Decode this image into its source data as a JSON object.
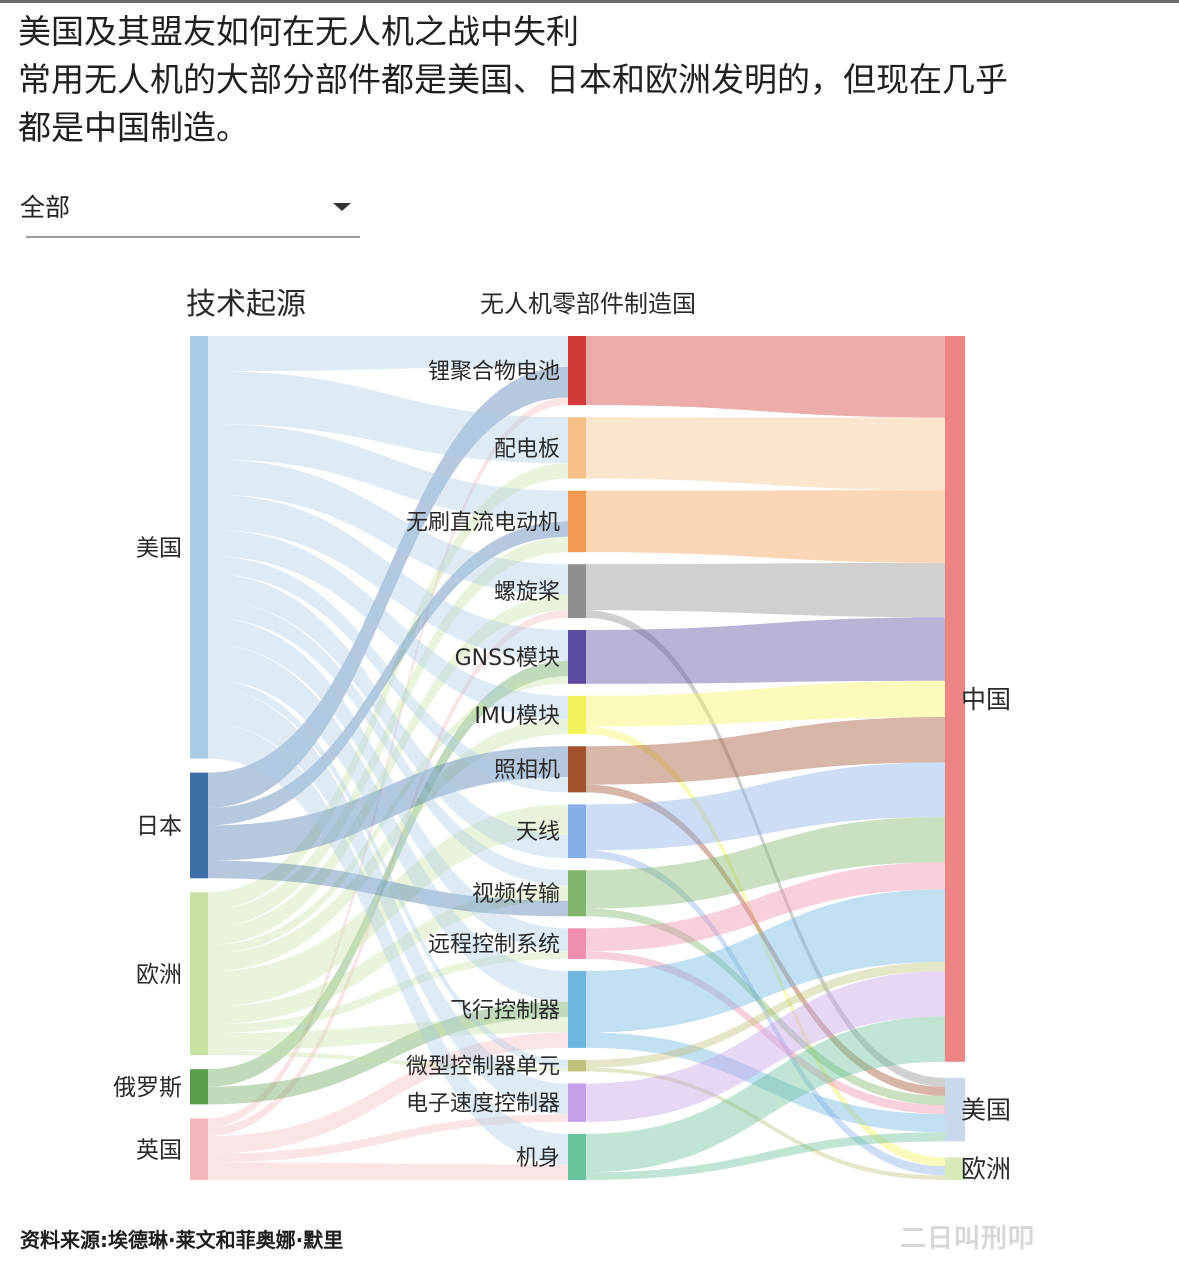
{
  "header": {
    "title": "美国及其盟友如何在无人机之战中失利",
    "subtitle_line1": "常用无人机的大部分部件都是美国、日本和欧洲发明的，但现在几乎",
    "subtitle_line2": "都是中国制造。"
  },
  "filter": {
    "selected": "全部"
  },
  "footer": {
    "source": "资料来源:埃德琳·莱文和菲奥娜·默里",
    "watermark": "二日叫刑叩"
  },
  "chart_data": {
    "type": "sankey",
    "column_titles": {
      "origin": "技术起源",
      "component": "无人机零部件制造国"
    },
    "columns": {
      "origin": [
        {
          "name": "美国",
          "color": "#a9cbe6"
        },
        {
          "name": "日本",
          "color": "#3c6fa6"
        },
        {
          "name": "欧洲",
          "color": "#c9e2a4"
        },
        {
          "name": "俄罗斯",
          "color": "#5a9e4b"
        },
        {
          "name": "英国",
          "color": "#f1b7bd"
        }
      ],
      "component": [
        {
          "name": "锂聚合物电池",
          "color": "#d13a35"
        },
        {
          "name": "配电板",
          "color": "#f5c188"
        },
        {
          "name": "无刷直流电动机",
          "color": "#f29a52"
        },
        {
          "name": "螺旋桨",
          "color": "#8f8f8f"
        },
        {
          "name": "GNSS模块",
          "color": "#5b4a9e"
        },
        {
          "name": "IMU模块",
          "color": "#f3f25a"
        },
        {
          "name": "照相机",
          "color": "#a0522d"
        },
        {
          "name": "天线",
          "color": "#86aee8"
        },
        {
          "name": "视频传输",
          "color": "#7fb56c"
        },
        {
          "name": "远程控制系统",
          "color": "#ee8fac"
        },
        {
          "name": "飞行控制器",
          "color": "#6cb6e0"
        },
        {
          "name": "微型控制器单元",
          "color": "#c2c27a"
        },
        {
          "name": "电子速度控制器",
          "color": "#c4a0e8"
        },
        {
          "name": "机身",
          "color": "#68c29b"
        }
      ],
      "manufacturer": [
        {
          "name": "中国",
          "color": "#ee8585"
        },
        {
          "name": "美国",
          "color": "#c9d8ea"
        },
        {
          "name": "欧洲",
          "color": "#d9eab8"
        }
      ]
    },
    "origin_to_component": [
      [
        "美国",
        "锂聚合物电池",
        2
      ],
      [
        "日本",
        "锂聚合物电池",
        2
      ],
      [
        "英国",
        "锂聚合物电池",
        0.5
      ],
      [
        "美国",
        "配电板",
        3
      ],
      [
        "欧洲",
        "配电板",
        1
      ],
      [
        "美国",
        "无刷直流电动机",
        2
      ],
      [
        "日本",
        "无刷直流电动机",
        1
      ],
      [
        "欧洲",
        "无刷直流电动机",
        1
      ],
      [
        "美国",
        "螺旋桨",
        2
      ],
      [
        "欧洲",
        "螺旋桨",
        1
      ],
      [
        "英国",
        "螺旋桨",
        0.5
      ],
      [
        "美国",
        "GNSS模块",
        2
      ],
      [
        "俄罗斯",
        "GNSS模块",
        1
      ],
      [
        "欧洲",
        "GNSS模块",
        0.5
      ],
      [
        "美国",
        "IMU模块",
        1.5
      ],
      [
        "欧洲",
        "IMU模块",
        1
      ],
      [
        "日本",
        "照相机",
        2
      ],
      [
        "美国",
        "照相机",
        1
      ],
      [
        "欧洲",
        "天线",
        2
      ],
      [
        "美国",
        "天线",
        1.5
      ],
      [
        "美国",
        "视频传输",
        1
      ],
      [
        "欧洲",
        "视频传输",
        1
      ],
      [
        "日本",
        "视频传输",
        1
      ],
      [
        "美国",
        "远程控制系统",
        1.5
      ],
      [
        "欧洲",
        "远程控制系统",
        0.5
      ],
      [
        "美国",
        "飞行控制器",
        2
      ],
      [
        "俄罗斯",
        "飞行控制器",
        1
      ],
      [
        "欧洲",
        "飞行控制器",
        1
      ],
      [
        "英国",
        "飞行控制器",
        1
      ],
      [
        "美国",
        "微型控制器单元",
        0.5
      ],
      [
        "欧洲",
        "微型控制器单元",
        0.25
      ],
      [
        "美国",
        "电子速度控制器",
        2
      ],
      [
        "英国",
        "电子速度控制器",
        0.5
      ],
      [
        "美国",
        "机身",
        2
      ],
      [
        "英国",
        "机身",
        1
      ]
    ],
    "component_to_manufacturer": [
      [
        "锂聚合物电池",
        "中国",
        4.5
      ],
      [
        "配电板",
        "中国",
        4
      ],
      [
        "无刷直流电动机",
        "中国",
        4
      ],
      [
        "螺旋桨",
        "中国",
        3
      ],
      [
        "螺旋桨",
        "美国",
        0.5
      ],
      [
        "GNSS模块",
        "中国",
        3.5
      ],
      [
        "IMU模块",
        "中国",
        2
      ],
      [
        "IMU模块",
        "欧洲",
        0.5
      ],
      [
        "照相机",
        "中国",
        2.5
      ],
      [
        "照相机",
        "美国",
        0.5
      ],
      [
        "天线",
        "中国",
        3
      ],
      [
        "天线",
        "欧洲",
        0.5
      ],
      [
        "视频传输",
        "中国",
        2.5
      ],
      [
        "视频传输",
        "美国",
        0.5
      ],
      [
        "远程控制系统",
        "中国",
        1.5
      ],
      [
        "远程控制系统",
        "美国",
        0.5
      ],
      [
        "飞行控制器",
        "中国",
        4
      ],
      [
        "飞行控制器",
        "美国",
        1
      ],
      [
        "微型控制器单元",
        "中国",
        0.5
      ],
      [
        "微型控制器单元",
        "欧洲",
        0.25
      ],
      [
        "电子速度控制器",
        "中国",
        2.5
      ],
      [
        "机身",
        "中国",
        2.5
      ],
      [
        "机身",
        "美国",
        0.5
      ]
    ]
  }
}
